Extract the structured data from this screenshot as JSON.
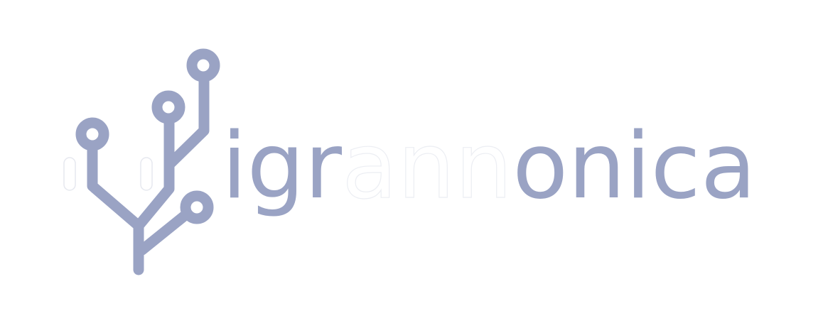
{
  "logo": {
    "text_parts": [
      "igr",
      "ann",
      "onica"
    ]
  }
}
